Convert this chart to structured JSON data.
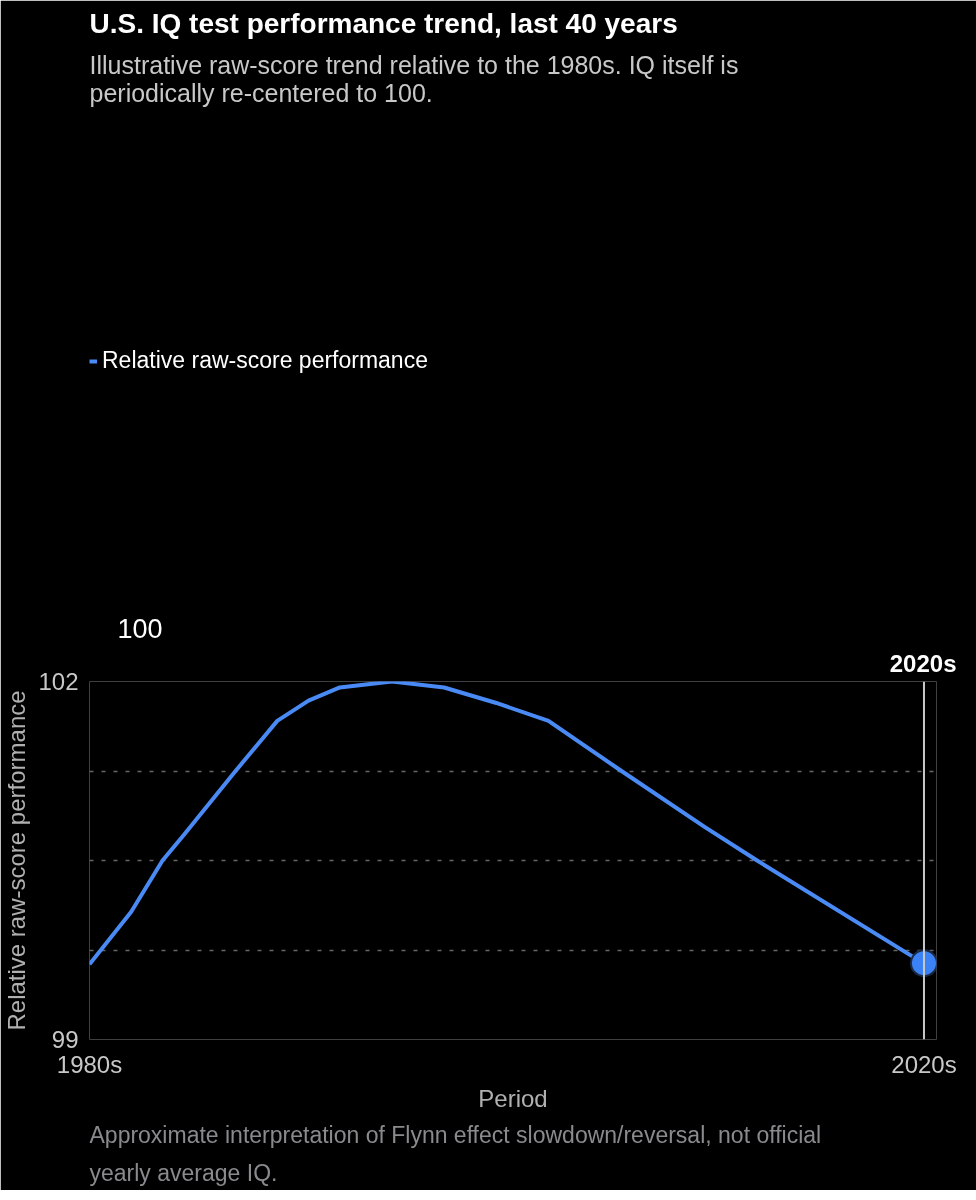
{
  "chart_data": {
    "type": "line",
    "title": "U.S. IQ test performance trend, last 40 years",
    "subtitle": "Illustrative raw-score trend relative to the 1980s. IQ itself is periodically re-centered to 100.",
    "xlabel": "Period",
    "ylabel": "Relative raw-score performance",
    "x": [
      1980,
      1982,
      1983.5,
      1984.5,
      1987,
      1989,
      1990.5,
      1992,
      1994.5,
      1997,
      1999.5,
      2002,
      2005.5,
      2009.5,
      2012,
      2019.5,
      2020
    ],
    "series": [
      {
        "name": "Relative raw-score performance",
        "color": "#4a8af4",
        "values": [
          99.63,
          100.07,
          100.5,
          100.71,
          101.25,
          101.67,
          101.84,
          101.95,
          102.0,
          101.95,
          101.82,
          101.67,
          101.25,
          100.78,
          100.5,
          99.69,
          99.64
        ]
      },
      {
        "type": "scatter",
        "marker": "circle",
        "color": "#3b82f6",
        "x": [
          2020
        ],
        "values": [
          99.64
        ]
      }
    ],
    "xlim": [
      1980,
      2020.6
    ],
    "ylim": [
      99,
      102
    ],
    "xticks": [
      {
        "value": 1980,
        "label": "1980s"
      },
      {
        "value": 2020,
        "label": "2020s"
      }
    ],
    "yticks": [
      99,
      {
        "value": 99.75,
        "label": null
      },
      {
        "value": 100.5,
        "label": null
      },
      {
        "value": 101.25,
        "label": null
      },
      102
    ],
    "grid": "y",
    "legend": "top left",
    "line_style": "solid",
    "ref_lines": [
      {
        "axis": "x",
        "value": 2020,
        "label": "2020s",
        "color": "#c8c8c8"
      }
    ],
    "annotations": [
      "100",
      "Approximate interpretation of Flynn effect slowdown/reversal, not official yearly average IQ."
    ]
  }
}
